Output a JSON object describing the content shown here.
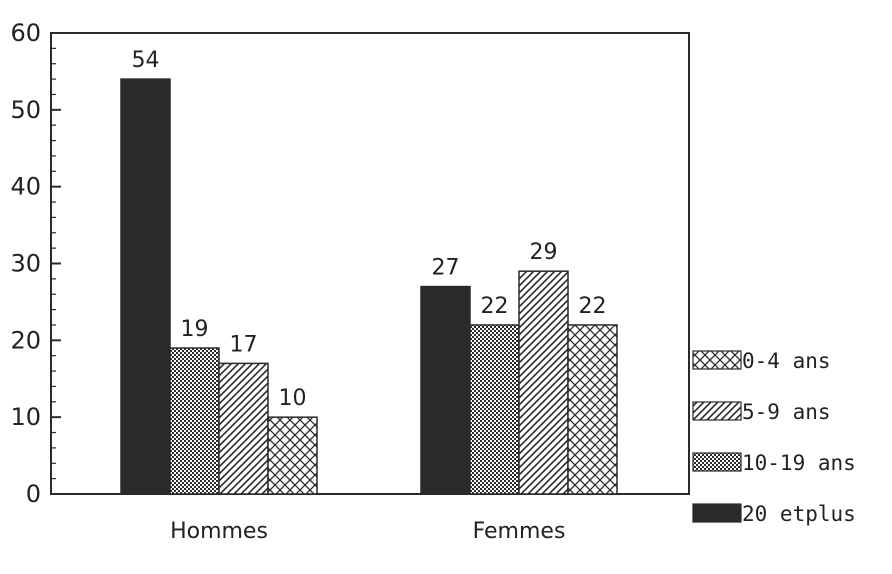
{
  "chart_data": {
    "type": "bar",
    "categories": [
      "Hommes",
      "Femmes"
    ],
    "series": [
      {
        "name": "20 etplus",
        "pattern": "solid",
        "values": [
          54,
          27
        ]
      },
      {
        "name": "10-19 ans",
        "pattern": "dots",
        "values": [
          19,
          22
        ]
      },
      {
        "name": "5-9 ans",
        "pattern": "diagonal",
        "values": [
          17,
          29
        ]
      },
      {
        "name": "0-4 ans",
        "pattern": "crosshatch",
        "values": [
          10,
          22
        ]
      }
    ],
    "bar_order": {
      "Hommes": [
        "20 etplus",
        "10-19 ans",
        "5-9 ans",
        "0-4 ans"
      ],
      "Femmes": [
        "20 etplus",
        "10-19 ans",
        "5-9 ans",
        "0-4 ans"
      ]
    },
    "legend_order": [
      "0-4 ans",
      "5-9 ans",
      "10-19 ans",
      "20 etplus"
    ],
    "ylim": [
      0,
      60
    ],
    "yticks": [
      0,
      10,
      20,
      30,
      40,
      50,
      60
    ],
    "title": "",
    "xlabel": "",
    "ylabel": "",
    "legend_position": "right",
    "grid": false,
    "colors": {
      "ink": "#2a2a2a",
      "background": "#ffffff"
    }
  }
}
